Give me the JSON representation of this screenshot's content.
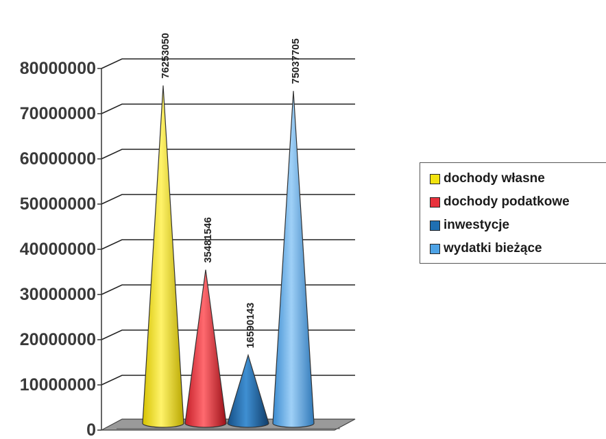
{
  "chart_data": {
    "type": "bar",
    "shape": "cone",
    "categories": [
      "dochody własne",
      "dochody podatkowe",
      "inwestycje",
      "wydatki bieżące"
    ],
    "values": [
      76253050,
      35481546,
      16590143,
      75037705
    ],
    "value_labels": [
      "76253050",
      "35481546",
      "16590143",
      "75037705"
    ],
    "ylim": [
      0,
      80000000
    ],
    "yticks": [
      0,
      10000000,
      20000000,
      30000000,
      40000000,
      50000000,
      60000000,
      70000000,
      80000000
    ],
    "ytick_labels": [
      "0",
      "10000000",
      "20000000",
      "30000000",
      "40000000",
      "50000000",
      "60000000",
      "70000000",
      "80000000"
    ],
    "grid": true,
    "legend_position": "right",
    "colors": [
      "#f2e30f",
      "#e8323c",
      "#1f6fb2",
      "#4ea3e6"
    ]
  }
}
